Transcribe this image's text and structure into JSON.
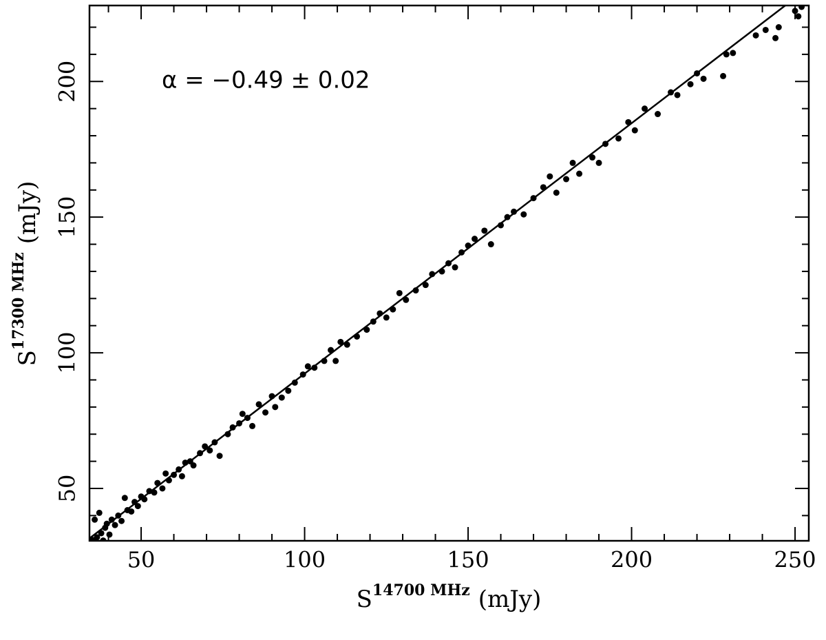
{
  "chart_data": {
    "type": "scatter",
    "x_label": {
      "base": "S",
      "sup": "14700 MHz",
      "unit": "(mJy)"
    },
    "y_label": {
      "base": "S",
      "sup": "17300 MHz",
      "unit": "(mJy)"
    },
    "annotation": "α = −0.49 ± 0.02",
    "xlim": [
      34.2,
      254.2
    ],
    "ylim": [
      30.7,
      228
    ],
    "xticks": [
      50,
      100,
      150,
      200,
      250
    ],
    "yticks": [
      50,
      100,
      150,
      200
    ],
    "xminorticks": [
      40,
      60,
      70,
      80,
      90,
      110,
      120,
      130,
      140,
      160,
      170,
      180,
      190,
      210,
      220,
      230,
      240
    ],
    "yminorticks": [
      40,
      60,
      70,
      80,
      90,
      110,
      120,
      130,
      140,
      160,
      170,
      180,
      190,
      210,
      220
    ],
    "color": "#000000",
    "fit": {
      "x": [
        34.2,
        247
      ],
      "y": [
        31.6,
        228
      ]
    },
    "x": [
      35.2,
      35.8,
      36.5,
      37.2,
      37.8,
      38.4,
      39.0,
      39.5,
      40.3,
      41.0,
      42.0,
      43.0,
      44.0,
      45.0,
      45.8,
      47.0,
      48.0,
      49.0,
      50.0,
      51.0,
      52.5,
      54.0,
      55.0,
      56.5,
      57.5,
      58.5,
      60.0,
      61.5,
      62.5,
      63.5,
      65.0,
      66.0,
      68.0,
      69.5,
      71.0,
      72.5,
      74.0,
      76.5,
      78.0,
      80.0,
      81.0,
      82.5,
      84.0,
      86.0,
      88.0,
      90.0,
      91.0,
      93.0,
      95.0,
      97.0,
      99.5,
      101.0,
      103.0,
      106.0,
      108.0,
      109.5,
      111.0,
      113.0,
      116.0,
      119.0,
      121.0,
      123.0,
      125.0,
      127.0,
      129.0,
      131.0,
      134.0,
      137.0,
      139.0,
      142.0,
      144.0,
      146.0,
      148.0,
      150.0,
      152.0,
      155.0,
      157.0,
      160.0,
      162.0,
      164.0,
      167.0,
      170.0,
      173.0,
      175.0,
      177.0,
      180.0,
      182.0,
      184.0,
      188.0,
      190.0,
      192.0,
      196.0,
      199.0,
      201.0,
      204.0,
      208.0,
      212.0,
      214.0,
      218.0,
      220.0,
      222.0,
      228.0,
      229.0,
      231.0,
      238.0,
      241.0,
      244.0,
      245.0,
      250.0,
      251.0,
      252.0
    ],
    "y": [
      31.0,
      38.5,
      32.0,
      41.0,
      33.5,
      30.8,
      35.5,
      37.0,
      33.0,
      38.5,
      36.5,
      40.0,
      38.0,
      46.5,
      42.0,
      41.5,
      45.0,
      43.5,
      47.0,
      46.0,
      49.0,
      48.5,
      52.0,
      50.0,
      55.5,
      53.0,
      55.0,
      57.0,
      54.5,
      59.5,
      60.0,
      58.5,
      63.0,
      65.5,
      64.0,
      67.0,
      62.0,
      70.0,
      72.5,
      74.0,
      77.5,
      76.0,
      73.0,
      81.0,
      78.0,
      84.0,
      80.0,
      83.5,
      86.0,
      89.0,
      92.0,
      95.0,
      94.5,
      97.0,
      101.0,
      97.0,
      104.0,
      103.0,
      106.0,
      108.5,
      111.5,
      114.5,
      113.0,
      116.0,
      122.0,
      119.5,
      123.0,
      125.0,
      129.0,
      130.0,
      133.0,
      131.5,
      137.0,
      139.5,
      142.0,
      145.0,
      140.0,
      147.0,
      150.0,
      152.0,
      151.0,
      157.0,
      161.0,
      165.0,
      159.0,
      164.0,
      170.0,
      166.0,
      172.0,
      170.0,
      177.0,
      179.0,
      185.0,
      182.0,
      190.0,
      188.0,
      196.0,
      195.0,
      199.0,
      203.0,
      201.0,
      202.0,
      210.0,
      210.5,
      217.0,
      219.0,
      216.0,
      220.0,
      226.0,
      224.0,
      227.5
    ]
  }
}
